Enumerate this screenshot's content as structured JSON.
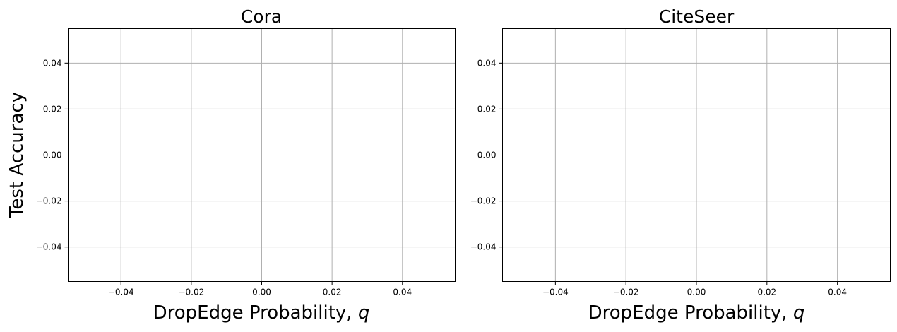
{
  "chart_data": [
    {
      "type": "line",
      "title": "Cora",
      "xlabel": "DropEdge Probability, ",
      "xlabel_var": "q",
      "ylabel": "Test Accuracy",
      "xlim": [
        -0.055,
        0.055
      ],
      "ylim": [
        -0.055,
        0.055
      ],
      "xticks": [
        -0.04,
        -0.02,
        0.0,
        0.02,
        0.04
      ],
      "xtick_labels": [
        "−0.04",
        "−0.02",
        "0.00",
        "0.02",
        "0.04"
      ],
      "yticks": [
        0.04,
        0.02,
        0.0,
        -0.02,
        -0.04
      ],
      "ytick_labels": [
        "0.04",
        "0.02",
        "0.00",
        "−0.02",
        "−0.04"
      ],
      "grid": true,
      "series": []
    },
    {
      "type": "line",
      "title": "CiteSeer",
      "xlabel": "DropEdge Probability, ",
      "xlabel_var": "q",
      "ylabel": "",
      "xlim": [
        -0.055,
        0.055
      ],
      "ylim": [
        -0.055,
        0.055
      ],
      "xticks": [
        -0.04,
        -0.02,
        0.0,
        0.02,
        0.04
      ],
      "xtick_labels": [
        "−0.04",
        "−0.02",
        "0.00",
        "0.02",
        "0.04"
      ],
      "yticks": [
        0.04,
        0.02,
        0.0,
        -0.02,
        -0.04
      ],
      "ytick_labels": [
        "0.04",
        "0.02",
        "0.00",
        "−0.02",
        "−0.04"
      ],
      "grid": true,
      "series": []
    }
  ]
}
